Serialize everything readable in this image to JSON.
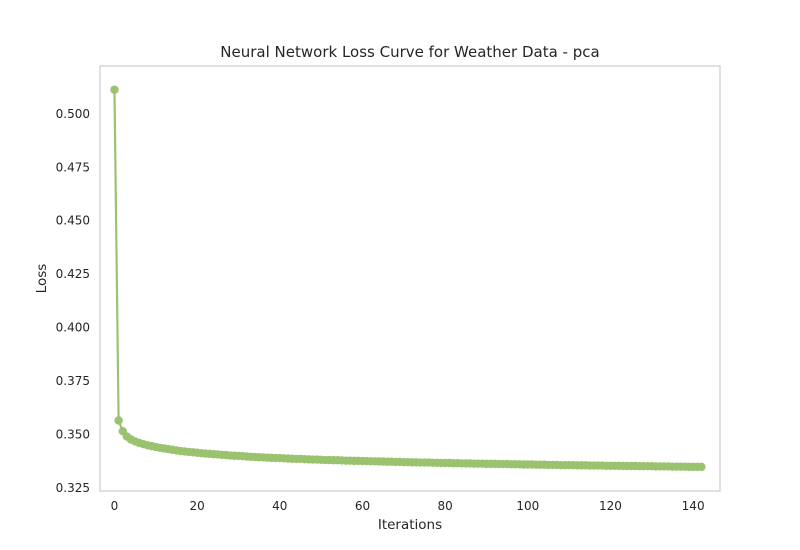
{
  "chart_data": {
    "type": "line",
    "title": "Neural Network Loss Curve for Weather Data - pca",
    "xlabel": "Iterations",
    "ylabel": "Loss",
    "xlim": [
      -3.5,
      146.5
    ],
    "ylim": [
      0.3235,
      0.5224
    ],
    "x_ticks": [
      0,
      20,
      40,
      60,
      80,
      100,
      120,
      140
    ],
    "y_ticks": [
      0.325,
      0.35,
      0.375,
      0.4,
      0.425,
      0.45,
      0.475,
      0.5
    ],
    "grid": false,
    "legend": "none",
    "marker": "circle",
    "color": "#9bc26f",
    "series": [
      {
        "x": [
          0,
          1,
          2,
          3,
          4,
          5,
          6,
          7,
          8,
          9,
          10,
          11,
          12,
          13,
          14,
          15,
          16,
          17,
          18,
          19,
          20,
          21,
          22,
          23,
          24,
          25,
          26,
          27,
          28,
          29,
          30,
          31,
          32,
          33,
          34,
          35,
          36,
          37,
          38,
          39,
          40,
          41,
          42,
          43,
          44,
          45,
          46,
          47,
          48,
          49,
          50,
          51,
          52,
          53,
          54,
          55,
          56,
          57,
          58,
          59,
          60,
          61,
          62,
          63,
          64,
          65,
          66,
          67,
          68,
          69,
          70,
          71,
          72,
          73,
          74,
          75,
          76,
          77,
          78,
          79,
          80,
          81,
          82,
          83,
          84,
          85,
          86,
          87,
          88,
          89,
          90,
          91,
          92,
          93,
          94,
          95,
          96,
          97,
          98,
          99,
          100,
          101,
          102,
          103,
          104,
          105,
          106,
          107,
          108,
          109,
          110,
          111,
          112,
          113,
          114,
          115,
          116,
          117,
          118,
          119,
          120,
          121,
          122,
          123,
          124,
          125,
          126,
          127,
          128,
          129,
          130,
          131,
          132,
          133,
          134,
          135,
          136,
          137,
          138,
          139,
          140,
          141,
          142
        ],
        "values": [
          0.5113,
          0.3565,
          0.3515,
          0.349,
          0.3476,
          0.3467,
          0.346,
          0.3454,
          0.3449,
          0.3445,
          0.3441,
          0.3437,
          0.3434,
          0.3431,
          0.3428,
          0.3425,
          0.3422,
          0.342,
          0.3418,
          0.3416,
          0.3414,
          0.3412,
          0.341,
          0.3409,
          0.3407,
          0.3406,
          0.3404,
          0.3403,
          0.3401,
          0.34,
          0.3399,
          0.3398,
          0.3396,
          0.3395,
          0.3394,
          0.3393,
          0.3392,
          0.3391,
          0.339,
          0.3389,
          0.3389,
          0.3388,
          0.3387,
          0.3386,
          0.3385,
          0.3385,
          0.3384,
          0.3383,
          0.3382,
          0.3382,
          0.3381,
          0.338,
          0.338,
          0.3379,
          0.3379,
          0.3378,
          0.3377,
          0.3377,
          0.3376,
          0.3376,
          0.3375,
          0.3375,
          0.3374,
          0.3374,
          0.3373,
          0.3373,
          0.3372,
          0.3372,
          0.3371,
          0.3371,
          0.337,
          0.337,
          0.3369,
          0.3369,
          0.3368,
          0.3368,
          0.3368,
          0.3367,
          0.3367,
          0.3366,
          0.3366,
          0.3366,
          0.3365,
          0.3365,
          0.3364,
          0.3364,
          0.3364,
          0.3363,
          0.3363,
          0.3363,
          0.3362,
          0.3362,
          0.3362,
          0.3361,
          0.3361,
          0.3361,
          0.336,
          0.336,
          0.336,
          0.3359,
          0.3359,
          0.3359,
          0.3358,
          0.3358,
          0.3358,
          0.3357,
          0.3357,
          0.3357,
          0.3356,
          0.3356,
          0.3356,
          0.3356,
          0.3355,
          0.3355,
          0.3355,
          0.3354,
          0.3354,
          0.3354,
          0.3354,
          0.3353,
          0.3353,
          0.3353,
          0.3353,
          0.3352,
          0.3352,
          0.3352,
          0.3352,
          0.3351,
          0.3351,
          0.3351,
          0.3351,
          0.335,
          0.335,
          0.335,
          0.335,
          0.3349,
          0.3349,
          0.3349,
          0.3349,
          0.3348,
          0.3348,
          0.3348,
          0.3348
        ]
      }
    ]
  }
}
